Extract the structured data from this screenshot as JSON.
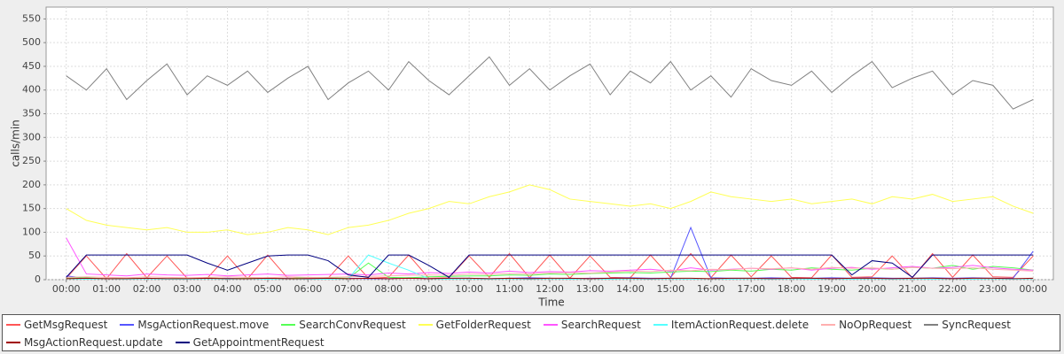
{
  "chart_data": {
    "type": "line",
    "x_label": "Time",
    "y_label": "calls/min",
    "x": [
      0,
      0.5,
      1,
      1.5,
      2,
      2.5,
      3,
      3.5,
      4,
      4.5,
      5,
      5.5,
      6,
      6.5,
      7,
      7.5,
      8,
      8.5,
      9,
      9.5,
      10,
      10.5,
      11,
      11.5,
      12,
      12.5,
      13,
      13.5,
      14,
      14.5,
      15,
      15.5,
      16,
      16.5,
      17,
      17.5,
      18,
      18.5,
      19,
      19.5,
      20,
      20.5,
      21,
      21.5,
      22,
      22.5,
      23,
      23.5,
      24
    ],
    "xlim": [
      -0.5,
      24.5
    ],
    "xticks": [
      {
        "value": 0,
        "label": "00:00"
      },
      {
        "value": 1,
        "label": "01:00"
      },
      {
        "value": 2,
        "label": "02:00"
      },
      {
        "value": 3,
        "label": "03:00"
      },
      {
        "value": 4,
        "label": "04:00"
      },
      {
        "value": 5,
        "label": "05:00"
      },
      {
        "value": 6,
        "label": "06:00"
      },
      {
        "value": 7,
        "label": "07:00"
      },
      {
        "value": 8,
        "label": "08:00"
      },
      {
        "value": 9,
        "label": "09:00"
      },
      {
        "value": 10,
        "label": "10:00"
      },
      {
        "value": 11,
        "label": "11:00"
      },
      {
        "value": 12,
        "label": "12:00"
      },
      {
        "value": 13,
        "label": "13:00"
      },
      {
        "value": 14,
        "label": "14:00"
      },
      {
        "value": 15,
        "label": "15:00"
      },
      {
        "value": 16,
        "label": "16:00"
      },
      {
        "value": 17,
        "label": "17:00"
      },
      {
        "value": 18,
        "label": "18:00"
      },
      {
        "value": 19,
        "label": "19:00"
      },
      {
        "value": 20,
        "label": "20:00"
      },
      {
        "value": 21,
        "label": "21:00"
      },
      {
        "value": 22,
        "label": "22:00"
      },
      {
        "value": 23,
        "label": "23:00"
      },
      {
        "value": 24,
        "label": "00:00"
      }
    ],
    "ylim": [
      0,
      575
    ],
    "yticks": [
      0,
      50,
      100,
      150,
      200,
      250,
      300,
      350,
      400,
      450,
      500,
      550
    ],
    "grid": true,
    "series": [
      {
        "name": "GetMsgRequest",
        "color": "#ff5555",
        "values": [
          3,
          50,
          2,
          55,
          4,
          50,
          3,
          3,
          50,
          2,
          52,
          3,
          4,
          3,
          50,
          3,
          5,
          52,
          3,
          4,
          50,
          5,
          55,
          4,
          52,
          3,
          50,
          5,
          4,
          52,
          5,
          55,
          4,
          52,
          6,
          50,
          5,
          4,
          52,
          5,
          6,
          50,
          4,
          55,
          5,
          52,
          6,
          5,
          50
        ]
      },
      {
        "name": "MsgActionRequest.move",
        "color": "#5555ff",
        "values": [
          8,
          3,
          2,
          2,
          3,
          2,
          2,
          2,
          3,
          2,
          2,
          3,
          2,
          2,
          3,
          2,
          2,
          4,
          2,
          3,
          3,
          2,
          3,
          4,
          3,
          2,
          3,
          3,
          4,
          3,
          3,
          110,
          4,
          3,
          3,
          4,
          3,
          3,
          4,
          3,
          4,
          3,
          3,
          4,
          3,
          4,
          3,
          3,
          60
        ]
      },
      {
        "name": "SearchConvRequest",
        "color": "#55ff55",
        "values": [
          3,
          4,
          2,
          3,
          3,
          2,
          3,
          4,
          2,
          3,
          3,
          2,
          5,
          4,
          3,
          35,
          5,
          4,
          6,
          7,
          8,
          8,
          10,
          9,
          12,
          11,
          13,
          14,
          15,
          14,
          16,
          18,
          17,
          20,
          18,
          22,
          20,
          25,
          22,
          20,
          24,
          22,
          26,
          24,
          30,
          22,
          28,
          25,
          20
        ]
      },
      {
        "name": "GetFolderRequest",
        "color": "#ffff55",
        "values": [
          150,
          125,
          115,
          110,
          105,
          110,
          100,
          100,
          105,
          95,
          100,
          110,
          105,
          95,
          110,
          115,
          125,
          140,
          150,
          165,
          160,
          175,
          185,
          200,
          190,
          170,
          165,
          160,
          155,
          160,
          150,
          165,
          185,
          175,
          170,
          165,
          170,
          160,
          165,
          170,
          160,
          175,
          170,
          180,
          165,
          170,
          175,
          155,
          140
        ]
      },
      {
        "name": "SearchRequest",
        "color": "#ff55ff",
        "values": [
          88,
          12,
          10,
          8,
          12,
          10,
          9,
          11,
          8,
          10,
          12,
          9,
          10,
          11,
          12,
          10,
          14,
          12,
          15,
          13,
          16,
          14,
          18,
          15,
          17,
          16,
          19,
          18,
          20,
          22,
          18,
          25,
          20,
          22,
          24,
          22,
          25,
          20,
          24,
          26,
          22,
          25,
          28,
          24,
          26,
          30,
          25,
          22,
          20
        ]
      },
      {
        "name": "ItemActionRequest.delete",
        "color": "#55ffff",
        "values": [
          2,
          1,
          2,
          1,
          2,
          1,
          1,
          2,
          1,
          2,
          1,
          2,
          1,
          1,
          2,
          52,
          35,
          20,
          2,
          1,
          2,
          1,
          2,
          1,
          2,
          1,
          2,
          1,
          2,
          1,
          2,
          1,
          2,
          1,
          2,
          1,
          2,
          1,
          2,
          1,
          2,
          1,
          2,
          1,
          2,
          1,
          2,
          1,
          2
        ]
      },
      {
        "name": "NoOpRequest",
        "color": "#ffafaf",
        "values": [
          5,
          6,
          5,
          4,
          6,
          5,
          4,
          5,
          6,
          5,
          4,
          6,
          5,
          5,
          6,
          7,
          8,
          9,
          10,
          9,
          12,
          11,
          13,
          12,
          14,
          15,
          14,
          16,
          18,
          17,
          20,
          19,
          22,
          21,
          24,
          23,
          25,
          22,
          26,
          24,
          25,
          22,
          26,
          24,
          23,
          25,
          22,
          20,
          18
        ]
      },
      {
        "name": "SyncRequest",
        "color": "#808080",
        "values": [
          430,
          400,
          445,
          380,
          420,
          455,
          390,
          430,
          410,
          440,
          395,
          425,
          450,
          380,
          415,
          440,
          400,
          460,
          420,
          390,
          430,
          470,
          410,
          445,
          400,
          430,
          455,
          390,
          440,
          415,
          460,
          400,
          430,
          385,
          445,
          420,
          410,
          440,
          395,
          430,
          460,
          405,
          425,
          440,
          390,
          420,
          410,
          360,
          380
        ]
      },
      {
        "name": "MsgActionRequest.update",
        "color": "#a00000",
        "values": [
          2,
          3,
          2,
          2,
          3,
          2,
          2,
          3,
          2,
          2,
          3,
          2,
          2,
          3,
          2,
          3,
          2,
          3,
          2,
          3,
          3,
          2,
          3,
          2,
          3,
          3,
          2,
          3,
          3,
          2,
          3,
          3,
          2,
          3,
          3,
          2,
          3,
          3,
          2,
          3,
          3,
          2,
          3,
          3,
          2,
          3,
          3,
          2,
          3
        ]
      },
      {
        "name": "GetAppointmentRequest",
        "color": "#000080",
        "values": [
          5,
          52,
          52,
          52,
          52,
          52,
          52,
          35,
          20,
          35,
          50,
          52,
          52,
          40,
          10,
          5,
          52,
          52,
          30,
          5,
          52,
          52,
          52,
          52,
          52,
          52,
          52,
          52,
          52,
          52,
          52,
          52,
          52,
          52,
          52,
          52,
          52,
          52,
          52,
          10,
          40,
          35,
          5,
          52,
          52,
          52,
          52,
          52,
          52
        ]
      }
    ]
  }
}
